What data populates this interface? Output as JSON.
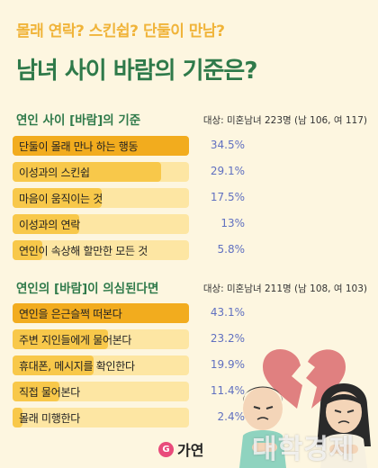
{
  "header": {
    "subtitle": "몰래 연락? 스킨쉽? 단둘이 만남?",
    "title": "남녀 사이 바람의 기준은?"
  },
  "chart_data": [
    {
      "type": "bar",
      "title": "연인 사이 [바람]의 기준",
      "sample_note": "대상: 미혼남녀 223명 (남 106, 여 117)",
      "unit": "%",
      "categories": [
        "단둘이 몰래 만나 하는 행동",
        "이성과의 스킨쉽",
        "마음이 움직이는 것",
        "이성과의 연락",
        "연인이 속상해 할만한 모든 것"
      ],
      "values": [
        34.5,
        29.1,
        17.5,
        13,
        5.8
      ],
      "labels": [
        "34.5%",
        "29.1%",
        "17.5%",
        "13%",
        "5.8%"
      ],
      "ylim": [
        0,
        34.5
      ]
    },
    {
      "type": "bar",
      "title": "연인의 [바람]이 의심된다면",
      "sample_note": "대상: 미혼남녀 211명 (남 108, 여 103)",
      "unit": "%",
      "categories": [
        "연인을 은근슬쩍 떠본다",
        "주변 지인들에게 물어본다",
        "휴대폰, 메시지를 확인한다",
        "직접 물어본다",
        "몰래 미행한다"
      ],
      "values": [
        43.1,
        23.2,
        19.9,
        11.4,
        2.4
      ],
      "labels": [
        "43.1%",
        "23.2%",
        "19.9%",
        "11.4%",
        "2.4%"
      ],
      "ylim": [
        0,
        43.1
      ]
    }
  ],
  "footer": {
    "logo_text": "가연",
    "logo_mark": "G",
    "watermark": "대학경제"
  },
  "colors": {
    "accent_green": "#2f7a4a",
    "accent_yellow": "#f0b43a",
    "bar_track": "#fde6a3",
    "bar_top": "#f2ac1e",
    "bar_fill": "#f8c84a",
    "value_text": "#6070c0",
    "heart": "#e08080"
  }
}
